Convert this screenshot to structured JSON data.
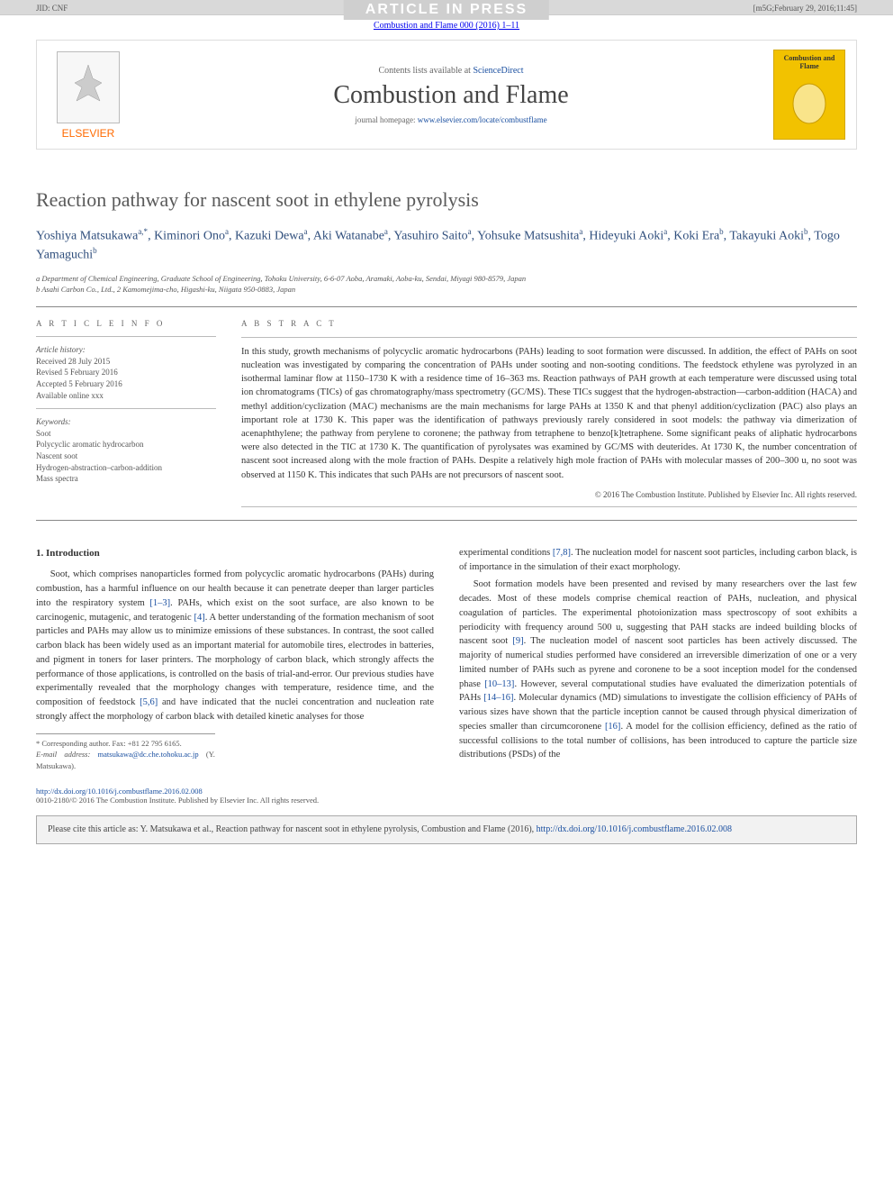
{
  "banner": {
    "press_text": "ARTICLE IN PRESS",
    "jid": "JID: CNF",
    "stamp": "[m5G;February 29, 2016;11:45]"
  },
  "journal_line": "Combustion and Flame 000 (2016) 1–11",
  "header": {
    "contents_prefix": "Contents lists available at ",
    "contents_link": "ScienceDirect",
    "journal_title": "Combustion and Flame",
    "homepage_prefix": "journal homepage: ",
    "homepage_url": "www.elsevier.com/locate/combustflame",
    "elsevier_label": "ELSEVIER",
    "cover_title": "Combustion and Flame"
  },
  "article": {
    "title": "Reaction pathway for nascent soot in ethylene pyrolysis",
    "authors_html": "Yoshiya Matsukawa<sup>a,*</sup>, Kiminori Ono<sup>a</sup>, Kazuki Dewa<sup>a</sup>, Aki Watanabe<sup>a</sup>, Yasuhiro Saito<sup>a</sup>, Yohsuke Matsushita<sup>a</sup>, Hideyuki Aoki<sup>a</sup>, Koki Era<sup>b</sup>, Takayuki Aoki<sup>b</sup>, Togo Yamaguchi<sup>b</sup>",
    "affiliations": [
      "a Department of Chemical Engineering, Graduate School of Engineering, Tohoku University, 6-6-07 Aoba, Aramaki, Aoba-ku, Sendai, Miyagi 980-8579, Japan",
      "b Asahi Carbon Co., Ltd., 2 Kamomejima-cho, Higashi-ku, Niigata 950-0883, Japan"
    ]
  },
  "info": {
    "heading": "A R T I C L E   I N F O",
    "history_label": "Article history:",
    "received": "Received 28 July 2015",
    "revised": "Revised 5 February 2016",
    "accepted": "Accepted 5 February 2016",
    "available": "Available online xxx",
    "keywords_label": "Keywords:",
    "keywords": [
      "Soot",
      "Polycyclic aromatic hydrocarbon",
      "Nascent soot",
      "Hydrogen-abstraction–carbon-addition",
      "Mass spectra"
    ]
  },
  "abstract": {
    "heading": "A B S T R A C T",
    "text": "In this study, growth mechanisms of polycyclic aromatic hydrocarbons (PAHs) leading to soot formation were discussed. In addition, the effect of PAHs on soot nucleation was investigated by comparing the concentration of PAHs under sooting and non-sooting conditions. The feedstock ethylene was pyrolyzed in an isothermal laminar flow at 1150–1730 K with a residence time of 16–363 ms. Reaction pathways of PAH growth at each temperature were discussed using total ion chromatograms (TICs) of gas chromatography/mass spectrometry (GC/MS). These TICs suggest that the hydrogen-abstraction—carbon-addition (HACA) and methyl addition/cyclization (MAC) mechanisms are the main mechanisms for large PAHs at 1350 K and that phenyl addition/cyclization (PAC) also plays an important role at 1730 K. This paper was the identification of pathways previously rarely considered in soot models: the pathway via dimerization of acenaphthylene; the pathway from perylene to coronene; the pathway from tetraphene to benzo[k]tetraphene. Some significant peaks of aliphatic hydrocarbons were also detected in the TIC at 1730 K. The quantification of pyrolysates was examined by GC/MS with deuterides. At 1730 K, the number concentration of nascent soot increased along with the mole fraction of PAHs. Despite a relatively high mole fraction of PAHs with molecular masses of 200–300 u, no soot was observed at 1150 K. This indicates that such PAHs are not precursors of nascent soot.",
    "copyright": "© 2016 The Combustion Institute. Published by Elsevier Inc. All rights reserved."
  },
  "body": {
    "section1_head": "1. Introduction",
    "p1": "Soot, which comprises nanoparticles formed from polycyclic aromatic hydrocarbons (PAHs) during combustion, has a harmful influence on our health because it can penetrate deeper than larger particles into the respiratory system [1–3]. PAHs, which exist on the soot surface, are also known to be carcinogenic, mutagenic, and teratogenic [4]. A better understanding of the formation mechanism of soot particles and PAHs may allow us to minimize emissions of these substances. In contrast, the soot called carbon black has been widely used as an important material for automobile tires, electrodes in batteries, and pigment in toners for laser printers. The morphology of carbon black, which strongly affects the performance of those applications, is controlled on the basis of trial-and-error. Our previous studies have experimentally revealed that the morphology changes with temperature, residence time, and the composition of feedstock [5,6] and have indicated that the nuclei concentration and nucleation rate strongly affect the morphology of carbon black with detailed kinetic analyses for those",
    "p2": "experimental conditions [7,8]. The nucleation model for nascent soot particles, including carbon black, is of importance in the simulation of their exact morphology.",
    "p3": "Soot formation models have been presented and revised by many researchers over the last few decades. Most of these models comprise chemical reaction of PAHs, nucleation, and physical coagulation of particles. The experimental photoionization mass spectroscopy of soot exhibits a periodicity with frequency around 500 u, suggesting that PAH stacks are indeed building blocks of nascent soot [9]. The nucleation model of nascent soot particles has been actively discussed. The majority of numerical studies performed have considered an irreversible dimerization of one or a very limited number of PAHs such as pyrene and coronene to be a soot inception model for the condensed phase [10–13]. However, several computational studies have evaluated the dimerization potentials of PAHs [14–16]. Molecular dynamics (MD) simulations to investigate the collision efficiency of PAHs of various sizes have shown that the particle inception cannot be caused through physical dimerization of species smaller than circumcoronene [16]. A model for the collision efficiency, defined as the ratio of successful collisions to the total number of collisions, has been introduced to capture the particle size distributions (PSDs) of the"
  },
  "footnote": {
    "corr_label": "* Corresponding author. Fax: +81 22 795 6165.",
    "email_label": "E-mail address: ",
    "email": "matsukawa@dc.che.tohoku.ac.jp",
    "email_name": " (Y. Matsukawa)."
  },
  "doi": {
    "url": "http://dx.doi.org/10.1016/j.combustflame.2016.02.008",
    "issn_line": "0010-2180/© 2016 The Combustion Institute. Published by Elsevier Inc. All rights reserved."
  },
  "cite": {
    "text_prefix": "Please cite this article as: Y. Matsukawa et al., Reaction pathway for nascent soot in ethylene pyrolysis, Combustion and Flame (2016), ",
    "url": "http://dx.doi.org/10.1016/j.combustflame.2016.02.008"
  },
  "refs": {
    "r1_3": "[1–3]",
    "r4": "[4]",
    "r5_6": "[5,6]",
    "r7_8": "[7,8]",
    "r9": "[9]",
    "r10_13": "[10–13]",
    "r14_16": "[14–16]",
    "r16": "[16]"
  },
  "colors": {
    "link": "#1a4fa0",
    "banner_bg": "#d9d9d9",
    "cover_bg": "#f2c200",
    "elsevier": "#ff6a00"
  }
}
